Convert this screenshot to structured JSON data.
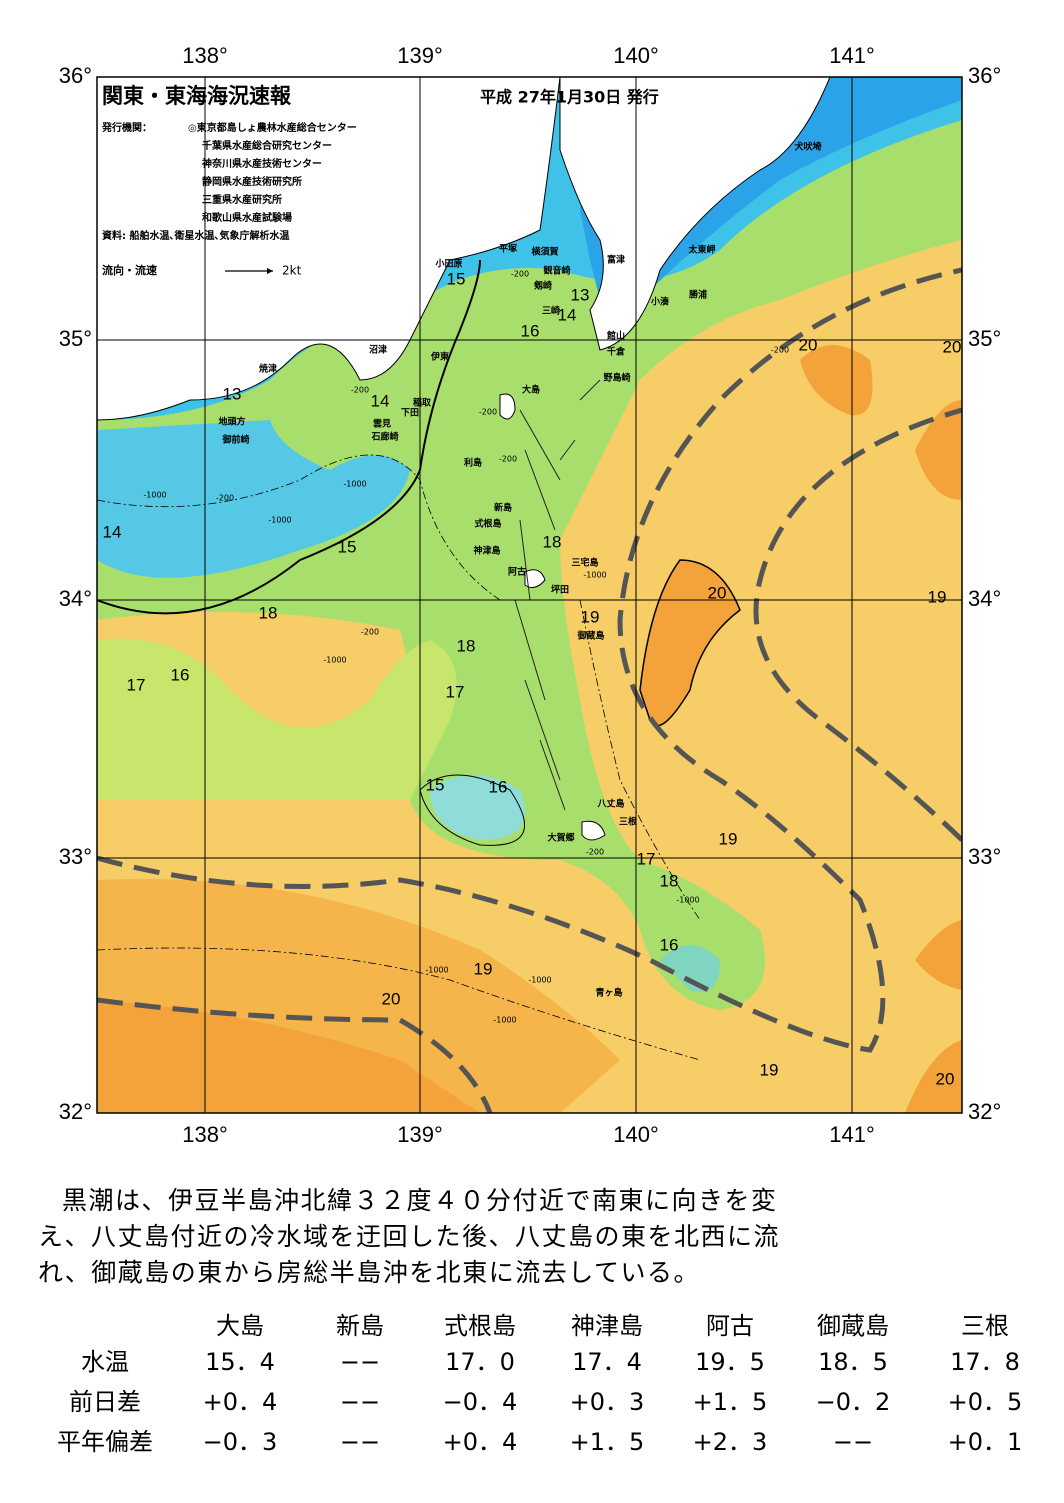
{
  "map": {
    "title": "関東・東海海況速報",
    "date": "平成 27年1月30日 発行",
    "publisher_label": "発行機関：",
    "publishers": [
      "◎東京都島しょ農林水産総合センター",
      "千葉県水産総合研究センター",
      "神奈川県水産技術センター",
      "静岡県水産技術研究所",
      "三重県水産研究所",
      "和歌山県水産試験場"
    ],
    "source": "資料: 船舶水温､衛星水温､気象庁解析水温",
    "legend_label": "流向・流速",
    "legend_scale": "2kt",
    "lon_ticks": [
      "138°",
      "139°",
      "140°",
      "141°"
    ],
    "lat_ticks": [
      "36°",
      "35°",
      "34°",
      "33°",
      "32°"
    ],
    "isotherm_labels": [
      15,
      13,
      14,
      16,
      13,
      14,
      20,
      20,
      14,
      15,
      18,
      20,
      19,
      18,
      19,
      18,
      17,
      16,
      17,
      15,
      16,
      19,
      17,
      18,
      16,
      19,
      20,
      19,
      20
    ],
    "places": [
      "犬吠埼",
      "太東岬",
      "勝浦",
      "小湊",
      "富津",
      "横須賀",
      "観音崎",
      "剱崎",
      "三崎",
      "館山",
      "千倉",
      "野島崎",
      "平塚",
      "小田原",
      "沼津",
      "伊東",
      "焼津",
      "稲取",
      "下田",
      "雲見",
      "石廊崎",
      "地頭方",
      "御前崎",
      "大島",
      "利島",
      "新島",
      "式根島",
      "神津島",
      "阿古",
      "三宅島",
      "坪田",
      "御蔵島",
      "八丈島",
      "三根",
      "大賀郷",
      "青ヶ島"
    ],
    "depth_labels": [
      "-200",
      "-200",
      "-200",
      "-1000",
      "-200",
      "-1000",
      "-1000",
      "-200",
      "-200",
      "-1000",
      "-1000",
      "-1000",
      "-200",
      "-1000",
      "-1000",
      "-1000",
      "-200"
    ]
  },
  "description": [
    "黒潮は、伊豆半島沖北緯３２度４０分付近で南東に向きを変",
    "え、八丈島付近の冷水域を迂回した後、八丈島の東を北西に流",
    "れ、御蔵島の東から房総半島沖を北東に流去している。"
  ],
  "table": {
    "header": [
      "大島",
      "新島",
      "式根島",
      "神津島",
      "阿古",
      "御蔵島",
      "三根"
    ],
    "rows": [
      [
        "水温",
        "15．4",
        "−−",
        "17．0",
        "17．4",
        "19．5",
        "18．5",
        "17．8"
      ],
      [
        "前日差",
        "+0．4",
        "−−",
        "−0．4",
        "+0．3",
        "+1．5",
        "−0．2",
        "+0．5"
      ],
      [
        "平年偏差",
        "−0．3",
        "−−",
        "+0．4",
        "+1．5",
        "+2．3",
        "−−",
        "+0．1"
      ]
    ]
  }
}
